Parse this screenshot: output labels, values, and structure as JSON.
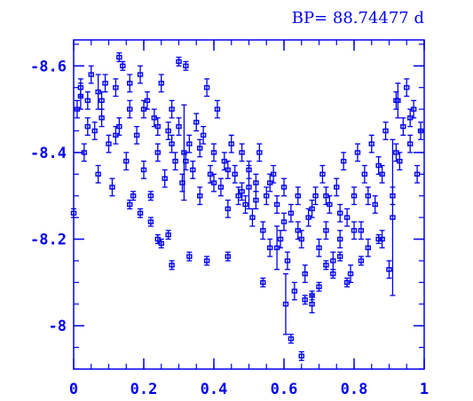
{
  "chart_data": {
    "type": "scatter",
    "title": "BP= 88.74477 d",
    "xlabel": "",
    "ylabel": "",
    "xlim": [
      0,
      1
    ],
    "ylim": [
      -7.9,
      -8.66
    ],
    "y_inverted": true,
    "grid": false,
    "color": "#0000ee",
    "marker": "x-with-errorbars",
    "x_ticks": [
      {
        "value": 0,
        "label": "0"
      },
      {
        "value": 0.2,
        "label": "0.2"
      },
      {
        "value": 0.4,
        "label": "0.4"
      },
      {
        "value": 0.6,
        "label": "0.6"
      },
      {
        "value": 0.8,
        "label": "0.8"
      },
      {
        "value": 1,
        "label": "1"
      }
    ],
    "y_ticks": [
      {
        "value": -8.6,
        "label": "-8.6"
      },
      {
        "value": -8.4,
        "label": "-8.4"
      },
      {
        "value": -8.2,
        "label": "-8.2"
      },
      {
        "value": -8,
        "label": "-8"
      }
    ],
    "series": [
      {
        "points": [
          [
            0.0,
            -8.26,
            0.01
          ],
          [
            0.01,
            -8.5,
            0.02
          ],
          [
            0.02,
            -8.55,
            0.02
          ],
          [
            0.03,
            -8.4,
            0.02
          ],
          [
            0.04,
            -8.52,
            0.02
          ],
          [
            0.05,
            -8.58,
            0.02
          ],
          [
            0.06,
            -8.45,
            0.02
          ],
          [
            0.07,
            -8.35,
            0.02
          ],
          [
            0.08,
            -8.48,
            0.02
          ],
          [
            0.09,
            -8.56,
            0.02
          ],
          [
            0.1,
            -8.42,
            0.02
          ],
          [
            0.11,
            -8.32,
            0.02
          ],
          [
            0.12,
            -8.55,
            0.02
          ],
          [
            0.13,
            -8.46,
            0.02
          ],
          [
            0.14,
            -8.6,
            0.01
          ],
          [
            0.15,
            -8.38,
            0.02
          ],
          [
            0.16,
            -8.5,
            0.02
          ],
          [
            0.17,
            -8.3,
            0.01
          ],
          [
            0.18,
            -8.44,
            0.02
          ],
          [
            0.19,
            -8.58,
            0.02
          ],
          [
            0.2,
            -8.36,
            0.02
          ],
          [
            0.21,
            -8.52,
            0.02
          ],
          [
            0.22,
            -8.3,
            0.01
          ],
          [
            0.23,
            -8.48,
            0.02
          ],
          [
            0.24,
            -8.4,
            0.02
          ],
          [
            0.25,
            -8.56,
            0.02
          ],
          [
            0.26,
            -8.34,
            0.02
          ],
          [
            0.27,
            -8.45,
            0.02
          ],
          [
            0.28,
            -8.5,
            0.02
          ],
          [
            0.29,
            -8.38,
            0.02
          ],
          [
            0.3,
            -8.46,
            0.02
          ],
          [
            0.31,
            -8.33,
            0.02
          ],
          [
            0.32,
            -8.6,
            0.01
          ],
          [
            0.33,
            -8.42,
            0.02
          ],
          [
            0.34,
            -8.36,
            0.02
          ],
          [
            0.35,
            -8.47,
            0.02
          ],
          [
            0.36,
            -8.3,
            0.02
          ],
          [
            0.37,
            -8.44,
            0.02
          ],
          [
            0.38,
            -8.55,
            0.02
          ],
          [
            0.39,
            -8.35,
            0.02
          ],
          [
            0.4,
            -8.4,
            0.02
          ],
          [
            0.41,
            -8.5,
            0.02
          ],
          [
            0.42,
            -8.32,
            0.02
          ],
          [
            0.43,
            -8.38,
            0.02
          ],
          [
            0.44,
            -8.27,
            0.02
          ],
          [
            0.45,
            -8.42,
            0.02
          ],
          [
            0.46,
            -8.35,
            0.02
          ],
          [
            0.47,
            -8.3,
            0.02
          ],
          [
            0.48,
            -8.4,
            0.02
          ],
          [
            0.49,
            -8.28,
            0.02
          ],
          [
            0.5,
            -8.36,
            0.02
          ],
          [
            0.51,
            -8.25,
            0.02
          ],
          [
            0.52,
            -8.33,
            0.02
          ],
          [
            0.53,
            -8.4,
            0.02
          ],
          [
            0.54,
            -8.22,
            0.02
          ],
          [
            0.55,
            -8.3,
            0.02
          ],
          [
            0.56,
            -8.18,
            0.02
          ],
          [
            0.57,
            -8.35,
            0.02
          ],
          [
            0.58,
            -8.28,
            0.02
          ],
          [
            0.59,
            -8.2,
            0.02
          ],
          [
            0.6,
            -8.32,
            0.02
          ],
          [
            0.61,
            -8.15,
            0.02
          ],
          [
            0.62,
            -8.26,
            0.02
          ],
          [
            0.63,
            -8.08,
            0.02
          ],
          [
            0.64,
            -8.3,
            0.02
          ],
          [
            0.65,
            -8.2,
            0.02
          ],
          [
            0.66,
            -8.12,
            0.02
          ],
          [
            0.67,
            -8.25,
            0.02
          ],
          [
            0.68,
            -8.05,
            0.02
          ],
          [
            0.69,
            -8.3,
            0.02
          ],
          [
            0.7,
            -8.18,
            0.02
          ],
          [
            0.71,
            -8.35,
            0.02
          ],
          [
            0.72,
            -8.22,
            0.02
          ],
          [
            0.73,
            -8.28,
            0.02
          ],
          [
            0.74,
            -8.15,
            0.02
          ],
          [
            0.75,
            -8.32,
            0.02
          ],
          [
            0.76,
            -8.2,
            0.02
          ],
          [
            0.77,
            -8.38,
            0.02
          ],
          [
            0.78,
            -8.25,
            0.02
          ],
          [
            0.79,
            -8.12,
            0.02
          ],
          [
            0.8,
            -8.3,
            0.02
          ],
          [
            0.81,
            -8.4,
            0.02
          ],
          [
            0.82,
            -8.22,
            0.02
          ],
          [
            0.83,
            -8.35,
            0.02
          ],
          [
            0.84,
            -8.18,
            0.02
          ],
          [
            0.85,
            -8.42,
            0.02
          ],
          [
            0.86,
            -8.28,
            0.02
          ],
          [
            0.87,
            -8.37,
            0.02
          ],
          [
            0.88,
            -8.2,
            0.02
          ],
          [
            0.89,
            -8.45,
            0.02
          ],
          [
            0.9,
            -8.13,
            0.02
          ],
          [
            0.91,
            -8.3,
            0.02
          ],
          [
            0.92,
            -8.52,
            0.02
          ],
          [
            0.93,
            -8.38,
            0.02
          ],
          [
            0.94,
            -8.46,
            0.02
          ],
          [
            0.95,
            -8.55,
            0.02
          ],
          [
            0.96,
            -8.42,
            0.02
          ],
          [
            0.97,
            -8.5,
            0.02
          ],
          [
            0.98,
            -8.35,
            0.02
          ],
          [
            0.99,
            -8.45,
            0.02
          ],
          [
            0.315,
            -8.4,
            0.11
          ],
          [
            0.605,
            -8.05,
            0.07
          ],
          [
            0.91,
            -8.25,
            0.18
          ],
          [
            0.925,
            -8.52,
            0.04
          ],
          [
            0.07,
            -8.54,
            0.04
          ],
          [
            0.02,
            -8.53,
            0.03
          ],
          [
            0.58,
            -8.18,
            0.05
          ],
          [
            0.5,
            -8.32,
            0.05
          ],
          [
            0.13,
            -8.62,
            0.01
          ],
          [
            0.3,
            -8.61,
            0.01
          ],
          [
            0.22,
            -8.24,
            0.01
          ],
          [
            0.25,
            -8.19,
            0.01
          ],
          [
            0.28,
            -8.14,
            0.01
          ],
          [
            0.33,
            -8.16,
            0.01
          ],
          [
            0.38,
            -8.15,
            0.01
          ],
          [
            0.44,
            -8.16,
            0.01
          ],
          [
            0.54,
            -8.1,
            0.01
          ],
          [
            0.65,
            -7.93,
            0.01
          ],
          [
            0.66,
            -8.06,
            0.01
          ],
          [
            0.7,
            -8.09,
            0.01
          ],
          [
            0.74,
            -8.12,
            0.01
          ],
          [
            0.78,
            -8.1,
            0.01
          ],
          [
            0.82,
            -8.15,
            0.01
          ],
          [
            0.87,
            -8.2,
            0.01
          ],
          [
            0.16,
            -8.28,
            0.01
          ],
          [
            0.19,
            -8.26,
            0.01
          ],
          [
            0.24,
            -8.2,
            0.01
          ],
          [
            0.27,
            -8.21,
            0.01
          ],
          [
            0.62,
            -7.97,
            0.01
          ],
          [
            0.68,
            -8.07,
            0.01
          ],
          [
            0.72,
            -8.14,
            0.01
          ],
          [
            0.76,
            -8.16,
            0.01
          ],
          [
            0.04,
            -8.46,
            0.02
          ],
          [
            0.08,
            -8.52,
            0.02
          ],
          [
            0.12,
            -8.44,
            0.02
          ],
          [
            0.16,
            -8.56,
            0.02
          ],
          [
            0.2,
            -8.5,
            0.02
          ],
          [
            0.24,
            -8.46,
            0.02
          ],
          [
            0.28,
            -8.42,
            0.02
          ],
          [
            0.32,
            -8.38,
            0.02
          ],
          [
            0.36,
            -8.41,
            0.02
          ],
          [
            0.4,
            -8.33,
            0.02
          ],
          [
            0.44,
            -8.36,
            0.02
          ],
          [
            0.48,
            -8.31,
            0.02
          ],
          [
            0.52,
            -8.29,
            0.02
          ],
          [
            0.56,
            -8.33,
            0.02
          ],
          [
            0.6,
            -8.24,
            0.02
          ],
          [
            0.64,
            -8.22,
            0.02
          ],
          [
            0.68,
            -8.27,
            0.02
          ],
          [
            0.72,
            -8.3,
            0.02
          ],
          [
            0.76,
            -8.26,
            0.02
          ],
          [
            0.8,
            -8.22,
            0.02
          ],
          [
            0.84,
            -8.3,
            0.02
          ],
          [
            0.88,
            -8.35,
            0.02
          ],
          [
            0.92,
            -8.4,
            0.02
          ],
          [
            0.96,
            -8.48,
            0.02
          ]
        ]
      }
    ]
  }
}
